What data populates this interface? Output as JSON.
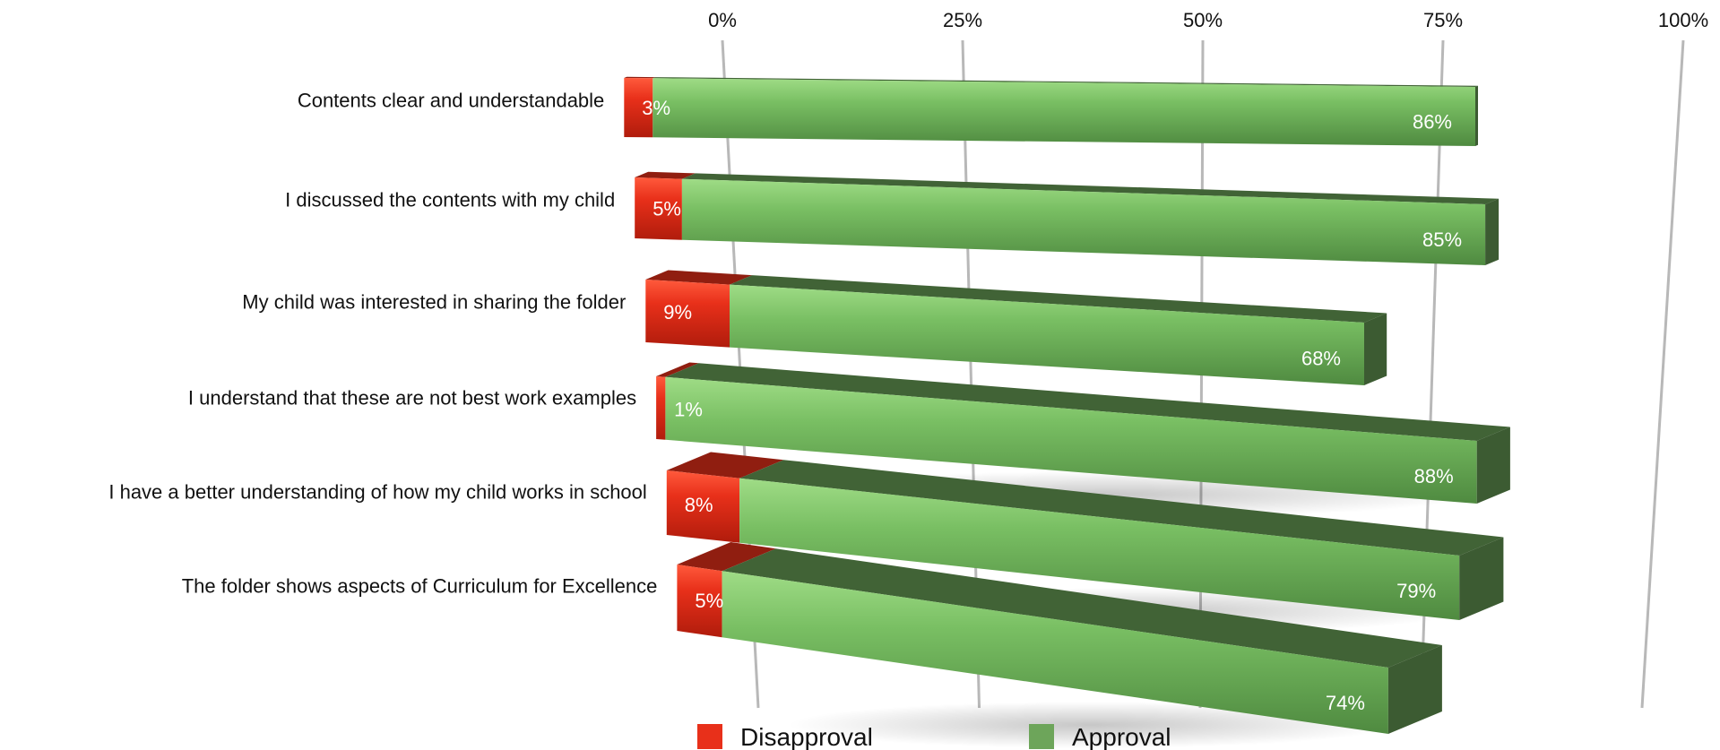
{
  "chart_data": {
    "type": "bar",
    "orientation": "horizontal",
    "stacked": true,
    "style": "3d",
    "categories": [
      "Contents clear and understandable",
      "I discussed the contents with my child",
      "My child was interested in sharing the folder",
      "I understand that these are not best work examples",
      "I have a better understanding of how my child works in school",
      "The folder shows aspects of Curriculum for Excellence"
    ],
    "series": [
      {
        "name": "Disapproval",
        "color": "#e8301a",
        "values": [
          3,
          5,
          9,
          1,
          8,
          5
        ],
        "labels": [
          "3%",
          "5%",
          "9%",
          "1%",
          "8%",
          "5%"
        ]
      },
      {
        "name": "Approval",
        "color": "#6da55a",
        "values": [
          86,
          85,
          68,
          88,
          79,
          74
        ],
        "labels": [
          "86%",
          "85%",
          "68%",
          "88%",
          "79%",
          "74%"
        ]
      }
    ],
    "x_ticks": [
      "0%",
      "25%",
      "50%",
      "75%",
      "100%"
    ],
    "xlim": [
      0,
      100
    ],
    "grid": true,
    "legend": "bottom"
  }
}
